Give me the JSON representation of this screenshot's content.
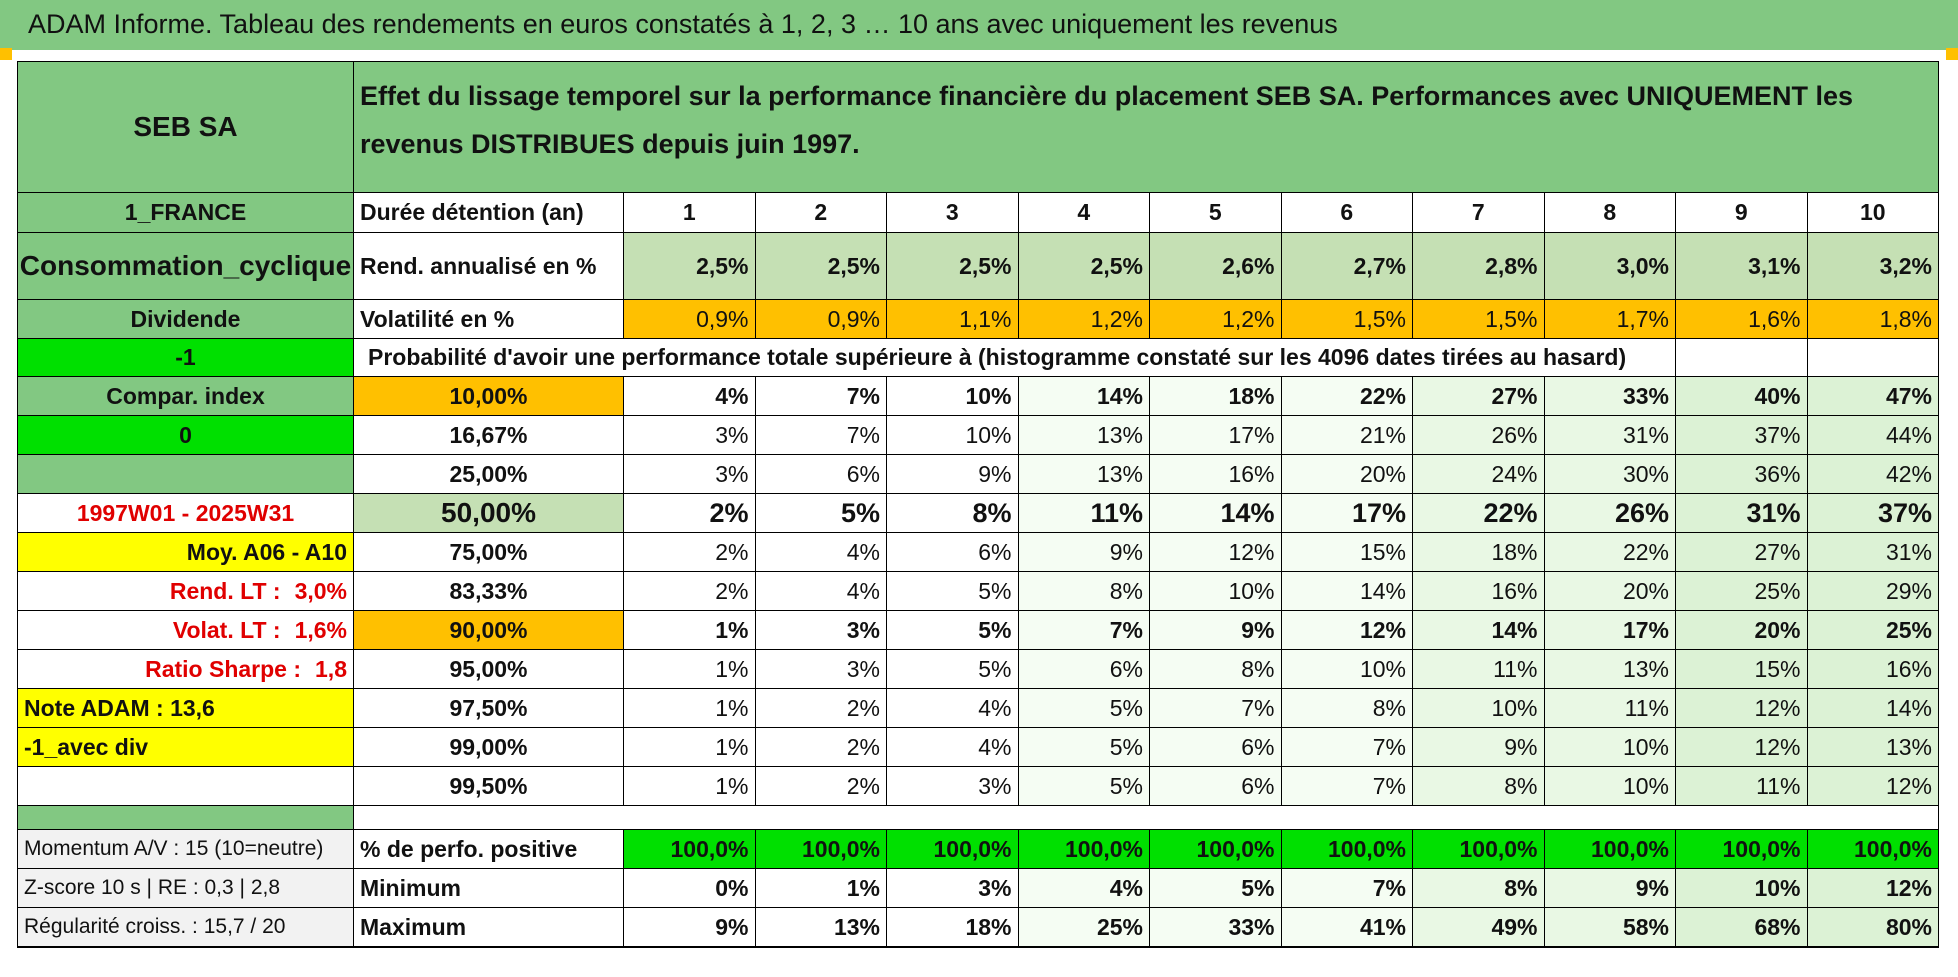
{
  "title": "ADAM Informe. Tableau des rendements en euros constatés à 1, 2, 3 … 10 ans avec uniquement les revenus",
  "left": {
    "company": "SEB SA",
    "country": "1_FRANCE",
    "sector": "Consommation_cyclique",
    "type": "Dividende",
    "val_minus1": "-1",
    "compar_index": "Compar. index",
    "val_zero": "0",
    "period": "1997W01 - 2025W31",
    "moy": "Moy. A06 - A10",
    "rend_lt_label": "Rend. LT :",
    "rend_lt_value": "3,0%",
    "volat_lt_label": "Volat. LT :",
    "volat_lt_value": "1,6%",
    "sharpe_label": "Ratio Sharpe :",
    "sharpe_value": "1,8",
    "note": "Note ADAM : 13,6",
    "avec_div": "-1_avec div",
    "momentum": "Momentum A/V : 15 (10=neutre)",
    "zscore": "Z-score 10 s | RE : 0,3 | 2,8",
    "regularite": "Régularité croiss. : 15,7 / 20"
  },
  "header_text": "Effet du lissage temporel sur la performance financière du placement SEB SA. Performances avec UNIQUEMENT les revenus DISTRIBUES depuis juin 1997.",
  "duree_label": "Durée détention (an)",
  "years": [
    "1",
    "2",
    "3",
    "4",
    "5",
    "6",
    "7",
    "8",
    "9",
    "10"
  ],
  "rend_label": "Rend. annualisé en %",
  "rend": [
    "2,5%",
    "2,5%",
    "2,5%",
    "2,5%",
    "2,6%",
    "2,7%",
    "2,8%",
    "3,0%",
    "3,1%",
    "3,2%"
  ],
  "vol_label": "Volatilité en %",
  "vol": [
    "0,9%",
    "0,9%",
    "1,1%",
    "1,2%",
    "1,2%",
    "1,5%",
    "1,5%",
    "1,7%",
    "1,6%",
    "1,8%"
  ],
  "prob_label": "Probabilité d'avoir une performance totale supérieure à (histogramme constaté sur les 4096 dates tirées au hasard)",
  "prob_rows": [
    {
      "pct": "10,00%",
      "vals": [
        "4%",
        "7%",
        "10%",
        "14%",
        "18%",
        "22%",
        "27%",
        "33%",
        "40%",
        "47%"
      ]
    },
    {
      "pct": "16,67%",
      "vals": [
        "3%",
        "7%",
        "10%",
        "13%",
        "17%",
        "21%",
        "26%",
        "31%",
        "37%",
        "44%"
      ]
    },
    {
      "pct": "25,00%",
      "vals": [
        "3%",
        "6%",
        "9%",
        "13%",
        "16%",
        "20%",
        "24%",
        "30%",
        "36%",
        "42%"
      ]
    },
    {
      "pct": "50,00%",
      "vals": [
        "2%",
        "5%",
        "8%",
        "11%",
        "14%",
        "17%",
        "22%",
        "26%",
        "31%",
        "37%"
      ]
    },
    {
      "pct": "75,00%",
      "vals": [
        "2%",
        "4%",
        "6%",
        "9%",
        "12%",
        "15%",
        "18%",
        "22%",
        "27%",
        "31%"
      ]
    },
    {
      "pct": "83,33%",
      "vals": [
        "2%",
        "4%",
        "5%",
        "8%",
        "10%",
        "14%",
        "16%",
        "20%",
        "25%",
        "29%"
      ]
    },
    {
      "pct": "90,00%",
      "vals": [
        "1%",
        "3%",
        "5%",
        "7%",
        "9%",
        "12%",
        "14%",
        "17%",
        "20%",
        "25%"
      ]
    },
    {
      "pct": "95,00%",
      "vals": [
        "1%",
        "3%",
        "5%",
        "6%",
        "8%",
        "10%",
        "11%",
        "13%",
        "15%",
        "16%"
      ]
    },
    {
      "pct": "97,50%",
      "vals": [
        "1%",
        "2%",
        "4%",
        "5%",
        "7%",
        "8%",
        "10%",
        "11%",
        "12%",
        "14%"
      ]
    },
    {
      "pct": "99,00%",
      "vals": [
        "1%",
        "2%",
        "4%",
        "5%",
        "6%",
        "7%",
        "9%",
        "10%",
        "12%",
        "13%"
      ]
    },
    {
      "pct": "99,50%",
      "vals": [
        "1%",
        "2%",
        "3%",
        "5%",
        "6%",
        "7%",
        "8%",
        "10%",
        "11%",
        "12%"
      ]
    }
  ],
  "pos_label": "% de perfo. positive",
  "pos": [
    "100,0%",
    "100,0%",
    "100,0%",
    "100,0%",
    "100,0%",
    "100,0%",
    "100,0%",
    "100,0%",
    "100,0%",
    "100,0%"
  ],
  "min_label": "Minimum",
  "min": [
    "0%",
    "1%",
    "3%",
    "4%",
    "5%",
    "7%",
    "8%",
    "9%",
    "10%",
    "12%"
  ],
  "max_label": "Maximum",
  "max": [
    "9%",
    "13%",
    "18%",
    "25%",
    "33%",
    "41%",
    "49%",
    "58%",
    "68%",
    "80%"
  ]
}
